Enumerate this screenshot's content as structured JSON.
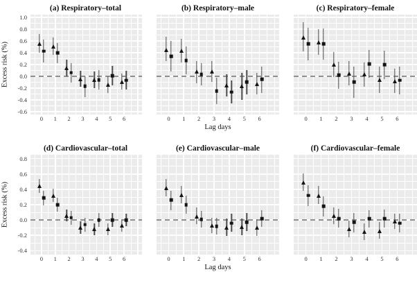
{
  "axes": {
    "ylabel": "Excess risk (%)",
    "xlabel": "Lag days"
  },
  "colors": {
    "panel_bg": "#ebebeb",
    "gridline": "#ffffff",
    "marker": "#141414",
    "error_bar": "#4d4d4d",
    "zero_line": "#8f8f8f",
    "text": "#111111"
  },
  "chart_data": [
    {
      "panel": "a",
      "type": "scatter",
      "title": "(a) Respiratory–total",
      "xlabel": "Lag days",
      "ylabel": "Excess risk (%)",
      "x": [
        0,
        1,
        2,
        3,
        4,
        5,
        6
      ],
      "ylim": [
        -0.6,
        1.0
      ],
      "yticks": [
        -0.6,
        -0.4,
        -0.2,
        0.0,
        0.2,
        0.4,
        0.6,
        0.8,
        1.0
      ],
      "grid": true,
      "zero_line": true,
      "legend": "none",
      "series": [
        {
          "name": "series 1 (triangle)",
          "marker": "triangle",
          "values": [
            0.55,
            0.51,
            0.14,
            -0.05,
            -0.06,
            -0.14,
            -0.09
          ],
          "ci_low": [
            0.4,
            0.36,
            0.0,
            -0.18,
            -0.2,
            -0.28,
            -0.22
          ],
          "ci_high": [
            0.72,
            0.66,
            0.28,
            0.09,
            0.08,
            0.0,
            0.05
          ]
        },
        {
          "name": "series 2 (square)",
          "marker": "square",
          "values": [
            0.43,
            0.4,
            0.06,
            -0.17,
            -0.06,
            0.01,
            -0.07
          ],
          "ci_low": [
            0.23,
            0.22,
            -0.11,
            -0.35,
            -0.22,
            -0.16,
            -0.23
          ],
          "ci_high": [
            0.62,
            0.57,
            0.22,
            0.0,
            0.11,
            0.18,
            0.09
          ]
        }
      ]
    },
    {
      "panel": "b",
      "type": "scatter",
      "title": "(b) Respiratory–male",
      "xlabel": "Lag days",
      "ylabel": "Excess risk (%)",
      "x": [
        0,
        1,
        2,
        3,
        4,
        5,
        6
      ],
      "ylim": [
        -0.6,
        1.0
      ],
      "yticks": [
        -0.6,
        -0.4,
        -0.2,
        0.0,
        0.2,
        0.4,
        0.6,
        0.8,
        1.0
      ],
      "grid": true,
      "zero_line": true,
      "legend": "none",
      "series": [
        {
          "name": "series 1 (triangle)",
          "marker": "triangle",
          "values": [
            0.45,
            0.44,
            0.08,
            0.08,
            -0.15,
            -0.17,
            -0.13
          ],
          "ci_low": [
            0.26,
            0.23,
            -0.12,
            -0.1,
            -0.34,
            -0.4,
            -0.31
          ],
          "ci_high": [
            0.67,
            0.64,
            0.26,
            0.26,
            0.04,
            0.06,
            0.06
          ]
        },
        {
          "name": "series 2 (square)",
          "marker": "square",
          "values": [
            0.34,
            0.27,
            0.03,
            -0.25,
            -0.27,
            -0.1,
            -0.05
          ],
          "ci_low": [
            0.08,
            0.03,
            -0.15,
            -0.47,
            -0.46,
            -0.31,
            -0.28
          ],
          "ci_high": [
            0.6,
            0.51,
            0.22,
            -0.02,
            -0.07,
            0.11,
            0.17
          ]
        }
      ]
    },
    {
      "panel": "c",
      "type": "scatter",
      "title": "(c) Respiratory–female",
      "xlabel": "Lag days",
      "ylabel": "Excess risk (%)",
      "x": [
        0,
        1,
        2,
        3,
        4,
        5,
        6
      ],
      "ylim": [
        -0.6,
        1.0
      ],
      "yticks": [
        -0.6,
        -0.4,
        -0.2,
        0.0,
        0.2,
        0.4,
        0.6,
        0.8,
        1.0
      ],
      "grid": true,
      "zero_line": true,
      "legend": "none",
      "series": [
        {
          "name": "series 1 (triangle)",
          "marker": "triangle",
          "values": [
            0.66,
            0.58,
            0.2,
            0.05,
            0.03,
            -0.06,
            -0.08
          ],
          "ci_low": [
            0.42,
            0.36,
            -0.01,
            -0.15,
            -0.18,
            -0.28,
            -0.29
          ],
          "ci_high": [
            0.92,
            0.8,
            0.41,
            0.26,
            0.23,
            0.16,
            0.13
          ]
        },
        {
          "name": "series 2 (square)",
          "marker": "square",
          "values": [
            0.55,
            0.55,
            0.02,
            -0.1,
            0.21,
            0.2,
            -0.07
          ],
          "ci_low": [
            0.27,
            0.28,
            -0.21,
            -0.37,
            -0.03,
            -0.05,
            -0.31
          ],
          "ci_high": [
            0.82,
            0.81,
            0.25,
            0.16,
            0.45,
            0.44,
            0.17
          ]
        }
      ]
    },
    {
      "panel": "d",
      "type": "scatter",
      "title": "(d) Cardiovascular–total",
      "xlabel": "Lag days",
      "ylabel": "Excess risk (%)",
      "x": [
        0,
        1,
        2,
        3,
        4,
        5,
        6
      ],
      "ylim": [
        -0.4,
        0.8
      ],
      "yticks": [
        -0.4,
        -0.2,
        0.0,
        0.2,
        0.4,
        0.6,
        0.8
      ],
      "grid": true,
      "zero_line": true,
      "legend": "none",
      "series": [
        {
          "name": "series 1 (triangle)",
          "marker": "triangle",
          "values": [
            0.44,
            0.32,
            0.06,
            -0.1,
            -0.12,
            -0.12,
            -0.07
          ],
          "ci_low": [
            0.35,
            0.24,
            -0.02,
            -0.18,
            -0.2,
            -0.2,
            -0.15
          ],
          "ci_high": [
            0.53,
            0.41,
            0.14,
            -0.02,
            -0.04,
            -0.04,
            0.01
          ]
        },
        {
          "name": "series 2 (square)",
          "marker": "square",
          "values": [
            0.29,
            0.2,
            0.03,
            -0.06,
            0.0,
            0.0,
            0.0
          ],
          "ci_low": [
            0.19,
            0.11,
            -0.06,
            -0.15,
            -0.09,
            -0.09,
            -0.08
          ],
          "ci_high": [
            0.38,
            0.29,
            0.12,
            0.03,
            0.09,
            0.09,
            0.08
          ]
        }
      ]
    },
    {
      "panel": "e",
      "type": "scatter",
      "title": "(e) Cardiovascular–male",
      "xlabel": "Lag days",
      "ylabel": "Excess risk (%)",
      "x": [
        0,
        1,
        2,
        3,
        4,
        5,
        6
      ],
      "ylim": [
        -0.4,
        0.8
      ],
      "yticks": [
        -0.4,
        -0.2,
        0.0,
        0.2,
        0.4,
        0.6,
        0.8
      ],
      "grid": true,
      "zero_line": true,
      "legend": "none",
      "series": [
        {
          "name": "series 1 (triangle)",
          "marker": "triangle",
          "values": [
            0.42,
            0.33,
            0.05,
            -0.07,
            -0.1,
            -0.09,
            -0.1
          ],
          "ci_low": [
            0.31,
            0.22,
            -0.05,
            -0.17,
            -0.21,
            -0.2,
            -0.21
          ],
          "ci_high": [
            0.53,
            0.44,
            0.16,
            0.03,
            0.02,
            0.02,
            0.01
          ]
        },
        {
          "name": "series 2 (square)",
          "marker": "square",
          "values": [
            0.26,
            0.2,
            0.01,
            -0.08,
            -0.04,
            -0.03,
            0.02
          ],
          "ci_low": [
            0.13,
            0.08,
            -0.1,
            -0.19,
            -0.15,
            -0.14,
            -0.09
          ],
          "ci_high": [
            0.38,
            0.32,
            0.12,
            0.03,
            0.08,
            0.09,
            0.13
          ]
        }
      ]
    },
    {
      "panel": "f",
      "type": "scatter",
      "title": "(f) Cardiovascular–female",
      "xlabel": "Lag days",
      "ylabel": "Excess risk (%)",
      "x": [
        0,
        1,
        2,
        3,
        4,
        5,
        6
      ],
      "ylim": [
        -0.4,
        0.8
      ],
      "yticks": [
        -0.4,
        -0.2,
        0.0,
        0.2,
        0.4,
        0.6,
        0.8
      ],
      "grid": true,
      "zero_line": true,
      "legend": "none",
      "series": [
        {
          "name": "series 1 (triangle)",
          "marker": "triangle",
          "values": [
            0.49,
            0.32,
            0.06,
            -0.12,
            -0.15,
            -0.14,
            -0.02
          ],
          "ci_low": [
            0.38,
            0.21,
            -0.05,
            -0.22,
            -0.26,
            -0.24,
            -0.12
          ],
          "ci_high": [
            0.61,
            0.44,
            0.16,
            -0.01,
            -0.04,
            -0.03,
            0.08
          ]
        },
        {
          "name": "series 2 (square)",
          "marker": "square",
          "values": [
            0.32,
            0.18,
            0.02,
            -0.03,
            0.02,
            0.02,
            -0.04
          ],
          "ci_low": [
            0.18,
            0.05,
            -0.1,
            -0.16,
            -0.1,
            -0.1,
            -0.16
          ],
          "ci_high": [
            0.45,
            0.31,
            0.15,
            0.09,
            0.13,
            0.14,
            0.08
          ]
        }
      ]
    }
  ]
}
